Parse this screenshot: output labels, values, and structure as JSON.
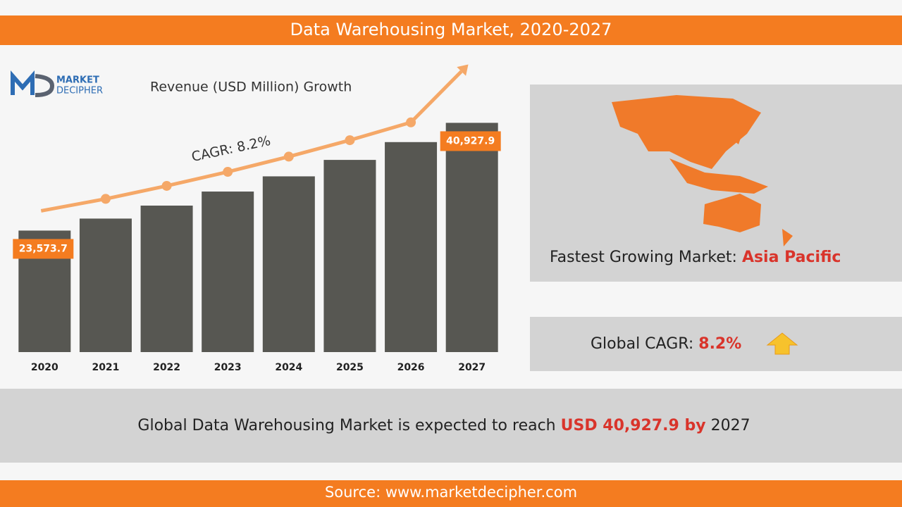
{
  "chart_data": {
    "type": "bar",
    "title": "Data Warehousing Market, 2020-2027",
    "subtitle": "Revenue (USD Million) Growth",
    "annotation": "CAGR: 8.2%",
    "categories": [
      "2020",
      "2021",
      "2022",
      "2023",
      "2024",
      "2025",
      "2026",
      "2027"
    ],
    "values": [
      23573.7,
      25506,
      27597,
      29860,
      32309,
      34958,
      37825,
      40927.9
    ],
    "value_labels": [
      "23,573.7",
      null,
      null,
      null,
      null,
      null,
      null,
      "40,927.9"
    ],
    "color": "#575752",
    "trend_color": "#f5a868",
    "label_color": "#f47c20",
    "ylim": [
      4000,
      42000
    ]
  },
  "logo": {
    "line1": "MARKET",
    "line2": "DECIPHER"
  },
  "fastest": {
    "label": "Fastest Growing Market: ",
    "value": "Asia Pacific"
  },
  "cagr": {
    "label": "Global CAGR: ",
    "value": "8.2%"
  },
  "summary": {
    "text": "Global Data Warehousing Market is expected to reach ",
    "highlight": "USD 40,927.9  by",
    "year": " 2027"
  },
  "source": "Source: www.marketdecipher.com"
}
